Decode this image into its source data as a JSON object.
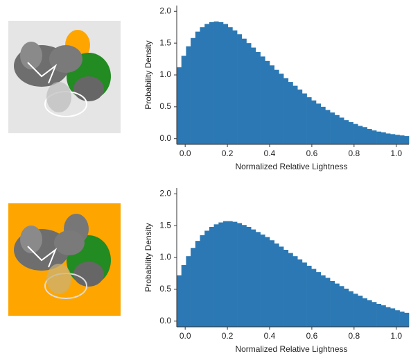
{
  "chart_data": [
    {
      "type": "histogram",
      "xlabel": "Normalized Relative Lightness",
      "ylabel": "Probability Density",
      "color": "#2b78b4",
      "bins": [
        -0.04,
        -0.018,
        0.004,
        0.026,
        0.048,
        0.07,
        0.092,
        0.114,
        0.136,
        0.158,
        0.18,
        0.202,
        0.224,
        0.246,
        0.268,
        0.29,
        0.312,
        0.334,
        0.356,
        0.378,
        0.4,
        0.422,
        0.444,
        0.466,
        0.488,
        0.51,
        0.532,
        0.554,
        0.576,
        0.598,
        0.62,
        0.642,
        0.664,
        0.686,
        0.708,
        0.73,
        0.752,
        0.774,
        0.796,
        0.818,
        0.84,
        0.862,
        0.884,
        0.906,
        0.928,
        0.95,
        0.972,
        0.994,
        1.016,
        1.038,
        1.06
      ],
      "values": [
        1.12,
        1.3,
        1.45,
        1.58,
        1.68,
        1.75,
        1.8,
        1.83,
        1.84,
        1.83,
        1.8,
        1.75,
        1.7,
        1.64,
        1.57,
        1.5,
        1.43,
        1.36,
        1.29,
        1.22,
        1.15,
        1.08,
        1.02,
        0.95,
        0.89,
        0.83,
        0.77,
        0.71,
        0.65,
        0.6,
        0.55,
        0.5,
        0.45,
        0.41,
        0.37,
        0.33,
        0.29,
        0.26,
        0.23,
        0.2,
        0.18,
        0.15,
        0.13,
        0.11,
        0.1,
        0.08,
        0.07,
        0.06,
        0.05,
        0.04
      ],
      "xlim": [
        -0.04,
        1.06
      ],
      "xticks": [
        {
          "value": 0,
          "label": "0.0"
        },
        0.2,
        0.4,
        0.6,
        0.8,
        {
          "value": 1,
          "label": "1.0"
        }
      ],
      "ylim": [
        -0.09,
        2.09
      ],
      "yticks": [
        {
          "value": 0,
          "label": "0.0"
        },
        0.5,
        {
          "value": 1,
          "label": "1.0"
        },
        1.5,
        {
          "value": 2,
          "label": "2.0"
        }
      ]
    },
    {
      "type": "histogram",
      "xlabel": "Normalized Relative Lightness",
      "ylabel": "Probability Density",
      "color": "#2b78b4",
      "bins": [
        -0.04,
        -0.018,
        0.004,
        0.026,
        0.048,
        0.07,
        0.092,
        0.114,
        0.136,
        0.158,
        0.18,
        0.202,
        0.224,
        0.246,
        0.268,
        0.29,
        0.312,
        0.334,
        0.356,
        0.378,
        0.4,
        0.422,
        0.444,
        0.466,
        0.488,
        0.51,
        0.532,
        0.554,
        0.576,
        0.598,
        0.62,
        0.642,
        0.664,
        0.686,
        0.708,
        0.73,
        0.752,
        0.774,
        0.796,
        0.818,
        0.84,
        0.862,
        0.884,
        0.906,
        0.928,
        0.95,
        0.972,
        0.994,
        1.016,
        1.038,
        1.06
      ],
      "values": [
        0.72,
        0.88,
        1.02,
        1.15,
        1.26,
        1.35,
        1.42,
        1.48,
        1.52,
        1.55,
        1.57,
        1.57,
        1.56,
        1.54,
        1.51,
        1.48,
        1.44,
        1.4,
        1.36,
        1.32,
        1.27,
        1.22,
        1.17,
        1.12,
        1.07,
        1.02,
        0.97,
        0.92,
        0.87,
        0.82,
        0.77,
        0.72,
        0.68,
        0.63,
        0.59,
        0.55,
        0.51,
        0.47,
        0.43,
        0.4,
        0.36,
        0.33,
        0.3,
        0.27,
        0.25,
        0.22,
        0.2,
        0.17,
        0.15,
        0.13
      ],
      "xlim": [
        -0.04,
        1.06
      ],
      "xticks": [
        {
          "value": 0,
          "label": "0.0"
        },
        0.2,
        0.4,
        0.6,
        0.8,
        {
          "value": 1,
          "label": "1.0"
        }
      ],
      "ylim": [
        -0.09,
        2.09
      ],
      "yticks": [
        {
          "value": 0,
          "label": "0.0"
        },
        0.5,
        {
          "value": 1,
          "label": "1.0"
        },
        1.5,
        {
          "value": 2,
          "label": "2.0"
        }
      ]
    }
  ]
}
